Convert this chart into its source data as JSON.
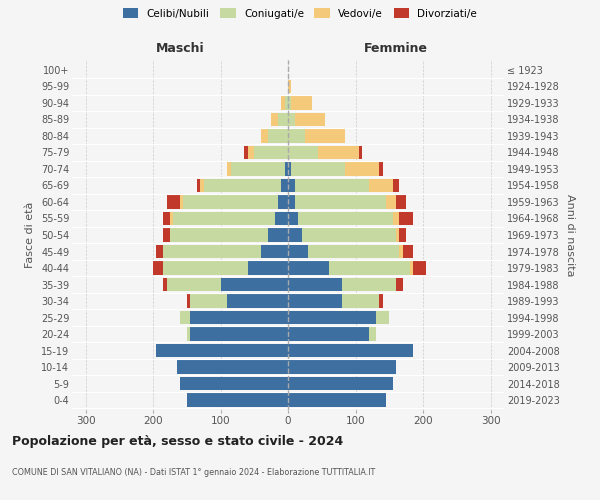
{
  "age_groups": [
    "0-4",
    "5-9",
    "10-14",
    "15-19",
    "20-24",
    "25-29",
    "30-34",
    "35-39",
    "40-44",
    "45-49",
    "50-54",
    "55-59",
    "60-64",
    "65-69",
    "70-74",
    "75-79",
    "80-84",
    "85-89",
    "90-94",
    "95-99",
    "100+"
  ],
  "birth_years": [
    "2019-2023",
    "2014-2018",
    "2009-2013",
    "2004-2008",
    "1999-2003",
    "1994-1998",
    "1989-1993",
    "1984-1988",
    "1979-1983",
    "1974-1978",
    "1969-1973",
    "1964-1968",
    "1959-1963",
    "1954-1958",
    "1949-1953",
    "1944-1948",
    "1939-1943",
    "1934-1938",
    "1929-1933",
    "1924-1928",
    "≤ 1923"
  ],
  "maschi": {
    "celibi": [
      150,
      160,
      165,
      195,
      145,
      145,
      90,
      100,
      60,
      40,
      30,
      20,
      15,
      10,
      5,
      0,
      0,
      0,
      0,
      0,
      0
    ],
    "coniugati": [
      0,
      0,
      0,
      0,
      5,
      15,
      55,
      80,
      125,
      145,
      145,
      150,
      140,
      115,
      80,
      50,
      30,
      15,
      5,
      0,
      0
    ],
    "vedovi": [
      0,
      0,
      0,
      0,
      0,
      0,
      0,
      0,
      0,
      0,
      0,
      5,
      5,
      5,
      5,
      10,
      10,
      10,
      5,
      0,
      0
    ],
    "divorziati": [
      0,
      0,
      0,
      0,
      0,
      0,
      5,
      5,
      15,
      10,
      10,
      10,
      20,
      5,
      0,
      5,
      0,
      0,
      0,
      0,
      0
    ]
  },
  "femmine": {
    "nubili": [
      145,
      155,
      160,
      185,
      120,
      130,
      80,
      80,
      60,
      30,
      20,
      15,
      10,
      10,
      5,
      0,
      0,
      0,
      0,
      0,
      0
    ],
    "coniugate": [
      0,
      0,
      0,
      0,
      10,
      20,
      55,
      80,
      120,
      135,
      140,
      140,
      135,
      110,
      80,
      45,
      25,
      10,
      5,
      0,
      0
    ],
    "vedove": [
      0,
      0,
      0,
      0,
      0,
      0,
      0,
      0,
      5,
      5,
      5,
      10,
      15,
      35,
      50,
      60,
      60,
      45,
      30,
      5,
      0
    ],
    "divorziate": [
      0,
      0,
      0,
      0,
      0,
      0,
      5,
      10,
      20,
      15,
      10,
      20,
      15,
      10,
      5,
      5,
      0,
      0,
      0,
      0,
      0
    ]
  },
  "colors": {
    "celibi": "#3d6fa0",
    "coniugati": "#c5d9a0",
    "vedovi": "#f5c97a",
    "divorziati": "#c0392b"
  },
  "xlim": 320,
  "title": "Popolazione per età, sesso e stato civile - 2024",
  "subtitle": "COMUNE DI SAN VITALIANO (NA) - Dati ISTAT 1° gennaio 2024 - Elaborazione TUTTITALIA.IT",
  "ylabel_left": "Fasce di età",
  "ylabel_right": "Anni di nascita",
  "xlabel_left": "Maschi",
  "xlabel_right": "Femmine",
  "bg_color": "#f5f5f5",
  "legend_labels": [
    "Celibi/Nubili",
    "Coniugati/e",
    "Vedovi/e",
    "Divorziati/e"
  ]
}
